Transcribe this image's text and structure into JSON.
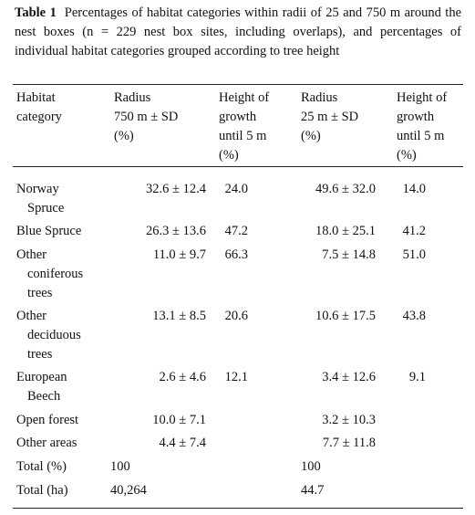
{
  "table": {
    "label": "Table 1",
    "caption": "Percentages of habitat categories within radii of 25 and 750 m around the nest boxes (n = 229 nest box sites, including overlaps), and percentages of individual habitat categories grouped according to tree height",
    "header": [
      [
        "Habitat",
        "category"
      ],
      [
        "Radius",
        "750 m ± SD",
        "(%)"
      ],
      [
        "Height of",
        "growth",
        "until 5 m",
        "(%)"
      ],
      [
        "Radius",
        "25 m ± SD",
        "(%)"
      ],
      [
        "Height of",
        "growth",
        "until 5 m",
        "(%)"
      ]
    ],
    "rows": [
      [
        [
          "Norway",
          "Spruce"
        ],
        "32.6 ± 12.4",
        "24.0",
        "49.6 ± 32.0",
        "14.0"
      ],
      [
        "Blue Spruce",
        "26.3 ± 13.6",
        "47.2",
        "18.0 ± 25.1",
        "41.2"
      ],
      [
        [
          "Other",
          "coniferous",
          "trees"
        ],
        "11.0 ± 9.7",
        "66.3",
        "7.5 ± 14.8",
        "51.0"
      ],
      [
        [
          "Other",
          "deciduous",
          "trees"
        ],
        "13.1 ± 8.5",
        "20.6",
        "10.6 ± 17.5",
        "43.8"
      ],
      [
        [
          "European",
          "Beech"
        ],
        "2.6 ± 4.6",
        "12.1",
        "3.4 ± 12.6",
        "9.1"
      ],
      [
        "Open forest",
        "10.0 ± 7.1",
        null,
        "3.2 ± 10.3",
        null
      ],
      [
        "Other areas",
        "4.4 ± 7.4",
        null,
        "7.7 ± 11.8",
        null
      ],
      [
        "Total (%)",
        "100",
        null,
        "100",
        null
      ],
      [
        "Total (ha)",
        "40,264",
        null,
        "44.7",
        null
      ]
    ]
  }
}
